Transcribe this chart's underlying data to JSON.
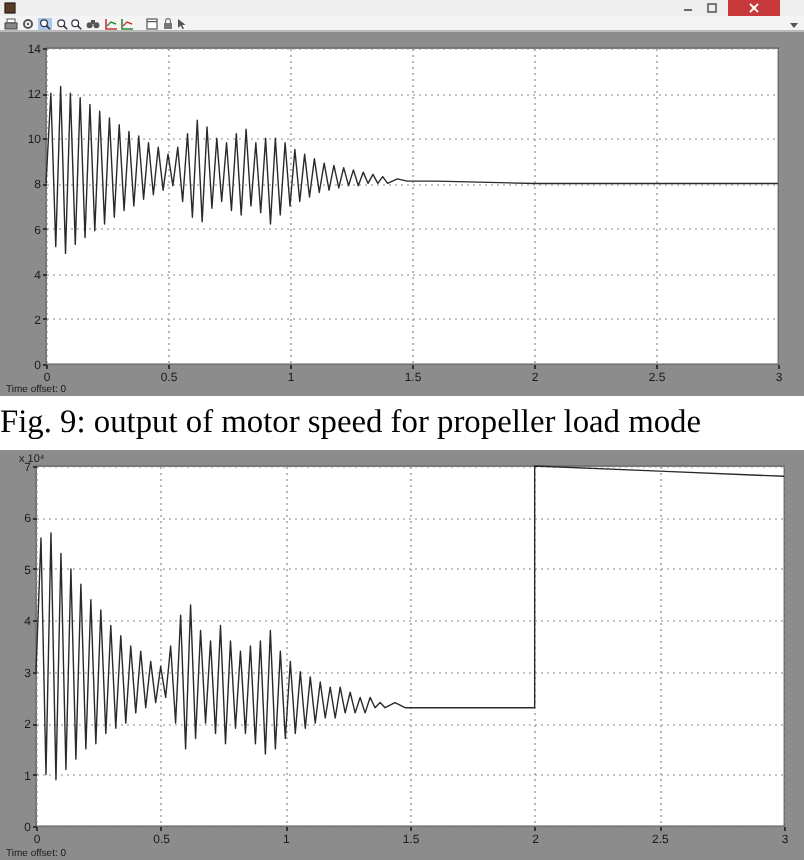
{
  "chart_data": [
    {
      "type": "line",
      "x": [
        0,
        0.02,
        0.04,
        0.06,
        0.08,
        0.1,
        0.12,
        0.14,
        0.16,
        0.18,
        0.2,
        0.22,
        0.24,
        0.26,
        0.28,
        0.3,
        0.32,
        0.34,
        0.36,
        0.38,
        0.4,
        0.42,
        0.44,
        0.46,
        0.48,
        0.5,
        0.52,
        0.54,
        0.56,
        0.58,
        0.6,
        0.62,
        0.64,
        0.66,
        0.68,
        0.7,
        0.72,
        0.74,
        0.76,
        0.78,
        0.8,
        0.82,
        0.84,
        0.86,
        0.88,
        0.9,
        0.92,
        0.94,
        0.96,
        0.98,
        1,
        1.02,
        1.04,
        1.06,
        1.08,
        1.1,
        1.12,
        1.14,
        1.16,
        1.18,
        1.2,
        1.22,
        1.24,
        1.26,
        1.28,
        1.3,
        1.32,
        1.34,
        1.36,
        1.38,
        1.4,
        1.44,
        1.48,
        1.6,
        2,
        2.5,
        3
      ],
      "series": [
        {
          "color": "#2a2a2a",
          "values": [
            8.0,
            12.0,
            5.2,
            12.3,
            4.9,
            12.0,
            5.3,
            11.8,
            5.6,
            11.5,
            5.9,
            11.2,
            6.2,
            10.9,
            6.5,
            10.6,
            6.8,
            10.3,
            7.0,
            10.1,
            7.3,
            9.8,
            7.5,
            9.6,
            7.7,
            9.3,
            7.9,
            9.6,
            7.2,
            10.2,
            6.5,
            10.8,
            6.3,
            10.5,
            6.9,
            10.0,
            7.2,
            9.8,
            6.8,
            10.2,
            6.6,
            10.4,
            7.0,
            9.8,
            6.7,
            10.0,
            6.2,
            10.0,
            6.6,
            9.8,
            7.0,
            9.5,
            7.2,
            9.3,
            7.4,
            9.1,
            7.6,
            8.9,
            7.7,
            8.8,
            7.8,
            8.7,
            7.9,
            8.6,
            7.9,
            8.5,
            8.0,
            8.4,
            8.0,
            8.3,
            8.0,
            8.2,
            8.1,
            8.1,
            8.0,
            8.0,
            8.0
          ]
        }
      ],
      "xlim": [
        0,
        3
      ],
      "xticks": [
        0,
        0.5,
        1,
        1.5,
        2,
        2.5,
        3
      ],
      "ylim": [
        0,
        14
      ],
      "yticks": [
        0,
        2,
        4,
        6,
        8,
        10,
        12,
        14
      ],
      "grid": true,
      "annotations": [
        "Time offset:  0",
        "Fig. 9: output of motor speed for propeller load mode"
      ]
    },
    {
      "type": "line",
      "x": [
        0,
        0.02,
        0.04,
        0.06,
        0.08,
        0.1,
        0.12,
        0.14,
        0.16,
        0.18,
        0.2,
        0.22,
        0.24,
        0.26,
        0.28,
        0.3,
        0.32,
        0.34,
        0.36,
        0.38,
        0.4,
        0.42,
        0.44,
        0.46,
        0.48,
        0.5,
        0.52,
        0.54,
        0.56,
        0.58,
        0.6,
        0.62,
        0.64,
        0.66,
        0.68,
        0.7,
        0.72,
        0.74,
        0.76,
        0.78,
        0.8,
        0.82,
        0.84,
        0.86,
        0.88,
        0.9,
        0.92,
        0.94,
        0.96,
        0.98,
        1,
        1.02,
        1.04,
        1.06,
        1.08,
        1.1,
        1.12,
        1.14,
        1.16,
        1.18,
        1.2,
        1.22,
        1.24,
        1.26,
        1.28,
        1.3,
        1.32,
        1.34,
        1.36,
        1.38,
        1.4,
        1.44,
        1.48,
        1.6,
        2,
        2,
        2.5,
        3
      ],
      "series": [
        {
          "color": "#2a2a2a",
          "values": [
            3.0,
            5.6,
            1.0,
            5.7,
            0.9,
            5.3,
            1.1,
            5.0,
            1.3,
            4.7,
            1.5,
            4.4,
            1.6,
            4.2,
            1.8,
            3.9,
            1.9,
            3.7,
            2.0,
            3.5,
            2.2,
            3.4,
            2.3,
            3.2,
            2.4,
            3.1,
            2.5,
            3.5,
            2.0,
            4.1,
            1.5,
            4.3,
            1.7,
            3.8,
            2.0,
            3.6,
            1.8,
            3.9,
            1.6,
            3.6,
            1.9,
            3.4,
            1.8,
            3.5,
            1.6,
            3.6,
            1.4,
            3.8,
            1.5,
            3.4,
            1.7,
            3.2,
            1.8,
            3.0,
            1.9,
            2.9,
            2.0,
            2.8,
            2.1,
            2.7,
            2.1,
            2.7,
            2.2,
            2.6,
            2.2,
            2.5,
            2.2,
            2.5,
            2.3,
            2.4,
            2.3,
            2.4,
            2.3,
            2.3,
            2.3,
            7.0,
            6.9,
            6.8
          ]
        }
      ],
      "xlim": [
        0,
        3
      ],
      "xticks": [
        0,
        0.5,
        1,
        1.5,
        2,
        2.5,
        3
      ],
      "ylim": [
        0,
        7
      ],
      "yticks": [
        0,
        1,
        2,
        3,
        4,
        5,
        6,
        7
      ],
      "ylabel": "x 10⁴",
      "grid": true,
      "annotations": [
        "Time offset:  0"
      ]
    }
  ]
}
